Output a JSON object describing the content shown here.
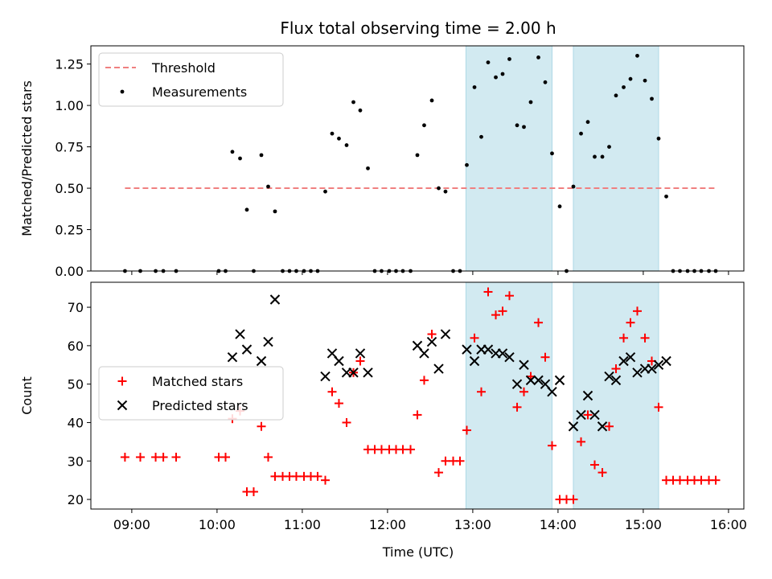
{
  "chart_data": {
    "title": "Flux total observing time = 2.00 h",
    "xlabel": "Time (UTC)",
    "x_ticks": [
      "09:00",
      "10:00",
      "11:00",
      "12:00",
      "13:00",
      "14:00",
      "15:00",
      "16:00"
    ],
    "x_range_hours": [
      8.52,
      16.18
    ],
    "shaded_intervals_hours": [
      [
        12.92,
        13.93
      ],
      [
        14.18,
        15.18
      ]
    ],
    "shade_color": "#add8e6",
    "panels": [
      {
        "type": "scatter",
        "ylabel": "Matched/Predicted stars",
        "ylim": [
          0,
          1.36
        ],
        "y_ticks": [
          "0.00",
          "0.25",
          "0.50",
          "0.75",
          "1.00",
          "1.25"
        ],
        "legend": {
          "placement": "top-left",
          "entries": [
            "Threshold",
            "Measurements"
          ]
        },
        "threshold": {
          "name": "Threshold",
          "value": 0.5,
          "x_start": 8.92,
          "x_end": 15.85,
          "color": "#f08080",
          "style": "dashed"
        },
        "series": [
          {
            "name": "Measurements",
            "marker": "dot",
            "color": "#000000",
            "x": [
              8.92,
              9.1,
              9.28,
              9.37,
              9.52,
              10.02,
              10.1,
              10.18,
              10.27,
              10.35,
              10.43,
              10.52,
              10.6,
              10.68,
              10.77,
              10.85,
              10.93,
              11.02,
              11.1,
              11.18,
              11.27,
              11.35,
              11.43,
              11.52,
              11.6,
              11.68,
              11.77,
              11.85,
              11.93,
              12.02,
              12.1,
              12.18,
              12.27,
              12.35,
              12.43,
              12.52,
              12.6,
              12.68,
              12.77,
              12.85,
              12.93,
              13.02,
              13.1,
              13.18,
              13.27,
              13.35,
              13.43,
              13.52,
              13.6,
              13.68,
              13.77,
              13.85,
              13.93,
              14.02,
              14.1,
              14.18,
              14.27,
              14.35,
              14.43,
              14.52,
              14.6,
              14.68,
              14.77,
              14.85,
              14.93,
              15.02,
              15.1,
              15.18,
              15.27,
              15.35,
              15.43,
              15.52,
              15.6,
              15.68,
              15.77,
              15.85
            ],
            "y": [
              0,
              0,
              0,
              0,
              0,
              0,
              0,
              0.72,
              0.68,
              0.37,
              0,
              0.7,
              0.51,
              0.36,
              0,
              0,
              0,
              0,
              0,
              0,
              0.48,
              0.83,
              0.8,
              0.76,
              1.02,
              0.97,
              0.62,
              0,
              0,
              0,
              0,
              0,
              0,
              0.7,
              0.88,
              1.03,
              0.5,
              0.48,
              0,
              0,
              0.64,
              1.11,
              0.81,
              1.26,
              1.17,
              1.19,
              1.28,
              0.88,
              0.87,
              1.02,
              1.29,
              1.14,
              0.71,
              0.39,
              0,
              0.51,
              0.83,
              0.9,
              0.69,
              0.69,
              0.75,
              1.06,
              1.11,
              1.16,
              1.3,
              1.15,
              1.04,
              0.8,
              0.45,
              0,
              0,
              0,
              0,
              0,
              0,
              0
            ]
          }
        ]
      },
      {
        "type": "scatter",
        "ylabel": "Count",
        "ylim": [
          17.5,
          76.5
        ],
        "y_ticks": [
          "20",
          "30",
          "40",
          "50",
          "60",
          "70"
        ],
        "legend": {
          "placement": "center-left",
          "entries": [
            "Matched stars",
            "Predicted stars"
          ]
        },
        "series": [
          {
            "name": "Matched stars",
            "marker": "plus",
            "color": "#ff0000",
            "x": [
              8.92,
              9.1,
              9.28,
              9.37,
              9.52,
              10.02,
              10.1,
              10.18,
              10.27,
              10.35,
              10.43,
              10.52,
              10.6,
              10.68,
              10.77,
              10.85,
              10.93,
              11.02,
              11.1,
              11.18,
              11.27,
              11.35,
              11.43,
              11.52,
              11.6,
              11.68,
              11.77,
              11.85,
              11.93,
              12.02,
              12.1,
              12.18,
              12.27,
              12.35,
              12.43,
              12.52,
              12.6,
              12.68,
              12.77,
              12.85,
              12.93,
              13.02,
              13.1,
              13.18,
              13.27,
              13.35,
              13.43,
              13.52,
              13.6,
              13.68,
              13.77,
              13.85,
              13.93,
              14.02,
              14.1,
              14.18,
              14.27,
              14.35,
              14.43,
              14.52,
              14.6,
              14.68,
              14.77,
              14.85,
              14.93,
              15.02,
              15.1,
              15.18,
              15.27,
              15.35,
              15.43,
              15.52,
              15.6,
              15.68,
              15.77,
              15.85
            ],
            "y": [
              31,
              31,
              31,
              31,
              31,
              31,
              31,
              41,
              43,
              22,
              22,
              39,
              31,
              26,
              26,
              26,
              26,
              26,
              26,
              26,
              25,
              48,
              45,
              40,
              53,
              56,
              33,
              33,
              33,
              33,
              33,
              33,
              33,
              42,
              51,
              63,
              27,
              30,
              30,
              30,
              38,
              62,
              48,
              74,
              68,
              69,
              73,
              44,
              48,
              52,
              66,
              57,
              34,
              20,
              20,
              20,
              35,
              42,
              29,
              27,
              39,
              54,
              62,
              66,
              69,
              62,
              56,
              44,
              25,
              25,
              25,
              25,
              25,
              25,
              25,
              25
            ]
          },
          {
            "name": "Predicted stars",
            "marker": "x",
            "color": "#000000",
            "x": [
              10.18,
              10.27,
              10.35,
              10.52,
              10.6,
              10.68,
              11.27,
              11.35,
              11.43,
              11.52,
              11.6,
              11.68,
              11.77,
              12.35,
              12.43,
              12.52,
              12.6,
              12.68,
              12.93,
              13.02,
              13.1,
              13.18,
              13.27,
              13.35,
              13.43,
              13.52,
              13.6,
              13.68,
              13.77,
              13.85,
              13.93,
              14.02,
              14.18,
              14.27,
              14.35,
              14.43,
              14.52,
              14.6,
              14.68,
              14.77,
              14.85,
              14.93,
              15.02,
              15.1,
              15.18,
              15.27
            ],
            "y": [
              57,
              63,
              59,
              56,
              61,
              72,
              52,
              58,
              56,
              53,
              53,
              58,
              53,
              60,
              58,
              61,
              54,
              63,
              59,
              56,
              59,
              59,
              58,
              58,
              57,
              50,
              55,
              51,
              51,
              50,
              48,
              51,
              39,
              42,
              47,
              42,
              39,
              52,
              51,
              56,
              57,
              53,
              54,
              54,
              55,
              56
            ]
          }
        ]
      }
    ]
  }
}
